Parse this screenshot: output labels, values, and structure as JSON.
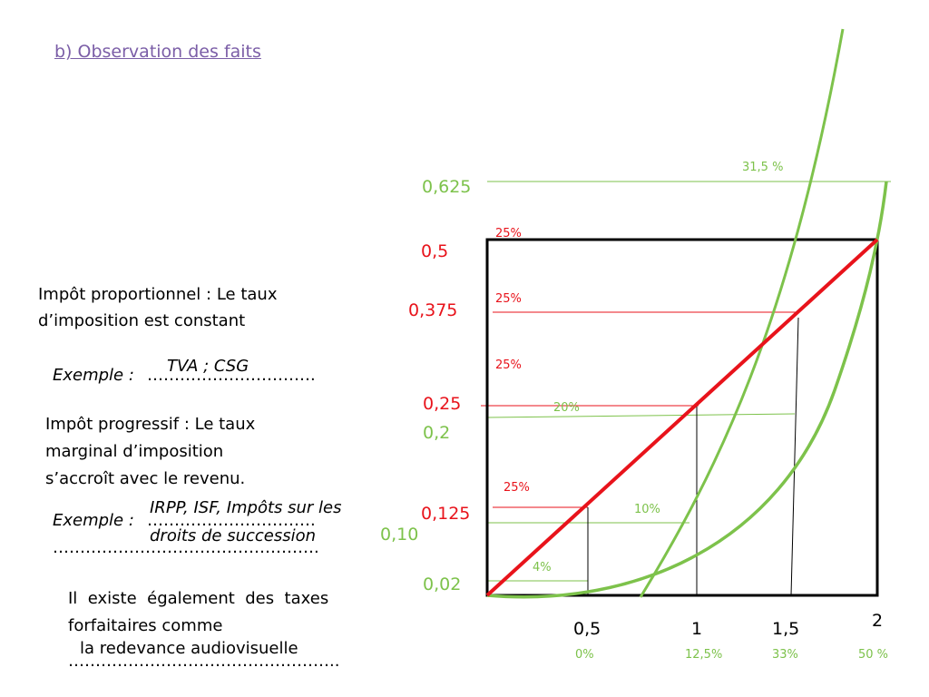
{
  "title": "b) Observation des faits",
  "proportional": {
    "line1": "Impôt proportionnel : Le taux",
    "line2": "d’imposition est constant",
    "example_label": "Exemple : ",
    "example_dots": "………………………….",
    "example_answer": "TVA ; CSG"
  },
  "progressive": {
    "line1": "Impôt progressif : Le taux",
    "line2": "marginal d’imposition",
    "line3": "s’accroît avec le revenu.",
    "example_label": "Exemple : ",
    "example_dots": "………………………….",
    "example_dots2": "………………………………………….",
    "answer_line1": "IRPP, ISF, Impôts sur les",
    "answer_line2": "droits de succession"
  },
  "flat": {
    "line1": "Il  existe  également  des  taxes",
    "line2": "forfaitaires comme",
    "dots": "…………………………………………..",
    "answer": "la redevance audiovisuelle"
  },
  "chart": {
    "y_labels_red": [
      "0,5",
      "0,375",
      "0,25",
      "0,125"
    ],
    "y_labels_green": [
      "0,625",
      "0,2",
      "0,10",
      "0,02"
    ],
    "x_labels": [
      "0,5",
      "1",
      "1,5",
      "2"
    ],
    "x_pcts": [
      "0%",
      "12,5%",
      "33%",
      "50 %"
    ],
    "red_pcts": [
      "25%",
      "25%",
      "25%",
      "25%"
    ],
    "green_pcts": [
      "31,5 %",
      "20%",
      "10%",
      "4%"
    ],
    "colors": {
      "red": "#e8131b",
      "green": "#7dc24b",
      "frame": "#000000"
    }
  }
}
